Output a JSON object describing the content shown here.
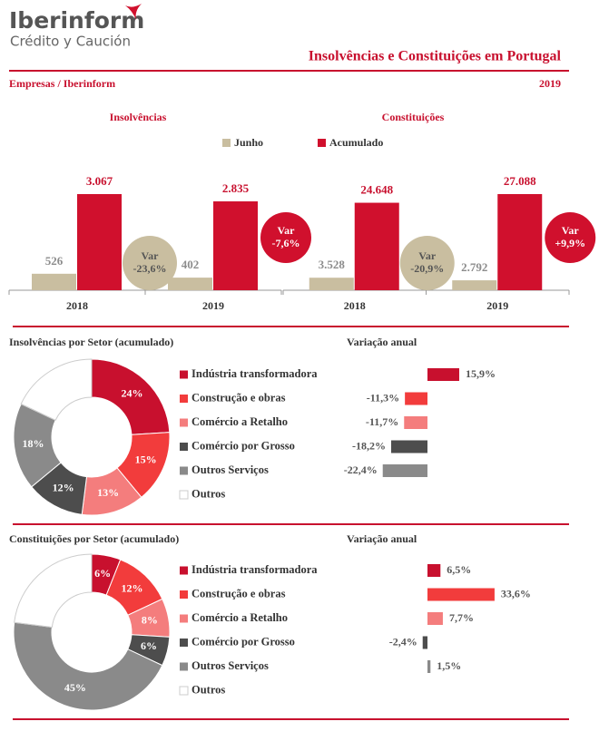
{
  "header": {
    "brand": "Iberinform",
    "brand_sub": "Crédito y Caución",
    "title": "Insolvências e Constituições em  Portugal",
    "subtitle": "Empresas / Iberinform",
    "year": "2019"
  },
  "chart_data": [
    {
      "type": "bar",
      "title": "Insolvências",
      "categories": [
        "2018",
        "2019"
      ],
      "series": [
        {
          "name": "Junho",
          "color": "#c9bea0",
          "values": [
            526,
            402
          ],
          "value_labels": [
            "526",
            "402"
          ],
          "annotation": [
            "Var",
            "-23,6%"
          ]
        },
        {
          "name": "Acumulado",
          "color": "#d0102d",
          "values": [
            3067,
            2835
          ],
          "value_labels": [
            "3.067",
            "2.835"
          ],
          "annotation": [
            "Var",
            "-7,6%"
          ]
        }
      ]
    },
    {
      "type": "bar",
      "title": "Constituições",
      "categories": [
        "2018",
        "2019"
      ],
      "series": [
        {
          "color": "#c9bea0",
          "values": [
            3528,
            2792
          ],
          "value_labels": [
            "3.528",
            "2.792"
          ],
          "annotation": [
            "Var",
            "-20,9%"
          ]
        },
        {
          "color": "#d0102d",
          "values": [
            24648,
            27088
          ],
          "value_labels": [
            "24.648",
            "27.088"
          ],
          "annotation": [
            "Var",
            "+9,9%"
          ]
        }
      ]
    },
    {
      "type": "donut",
      "title": "Insolvências por Setor (acumulado)",
      "categories": [
        "Indústria transformadora",
        "Construção e obras",
        "Comércio a Retalho",
        "Comércio por Grosso",
        "Outros Serviços",
        "Outros"
      ],
      "values": [
        24,
        15,
        13,
        12,
        18,
        18
      ],
      "value_labels": [
        "24%",
        "15%",
        "13%",
        "12%",
        "18%",
        null
      ],
      "colors": [
        "#c8102e",
        "#f23c3c",
        "#f47d7d",
        "#4d4d4d",
        "#8a8a8a",
        "#ffffff"
      ]
    },
    {
      "type": "hbar",
      "title": "Variação anual",
      "values": [
        15.9,
        -11.3,
        -11.7,
        -18.2,
        -22.4
      ],
      "value_labels": [
        "15,9%",
        "-11,3%",
        "-11,7%",
        "-18,2%",
        "-22,4%"
      ],
      "colors": [
        "#c8102e",
        "#f23c3c",
        "#f47d7d",
        "#4d4d4d",
        "#8a8a8a"
      ]
    },
    {
      "type": "donut",
      "title": "Constituições por Setor (acumulado)",
      "categories": [
        "Indústria transformadora",
        "Construção e obras",
        "Comércio a Retalho",
        "Comércio por Grosso",
        "Outros Serviços",
        "Outros"
      ],
      "values": [
        6,
        12,
        8,
        6,
        45,
        23
      ],
      "value_labels": [
        "6%",
        "12%",
        "8%",
        "6%",
        "45%",
        null
      ],
      "colors": [
        "#c8102e",
        "#f23c3c",
        "#f47d7d",
        "#4d4d4d",
        "#8a8a8a",
        "#ffffff"
      ]
    },
    {
      "type": "hbar",
      "title": "Variação anual",
      "values": [
        6.5,
        33.6,
        7.7,
        -2.4,
        1.5
      ],
      "value_labels": [
        "6,5%",
        "33,6%",
        "7,7%",
        "-2,4%",
        "1,5%"
      ],
      "colors": [
        "#c8102e",
        "#f23c3c",
        "#f47d7d",
        "#4d4d4d",
        "#8a8a8a"
      ]
    }
  ]
}
